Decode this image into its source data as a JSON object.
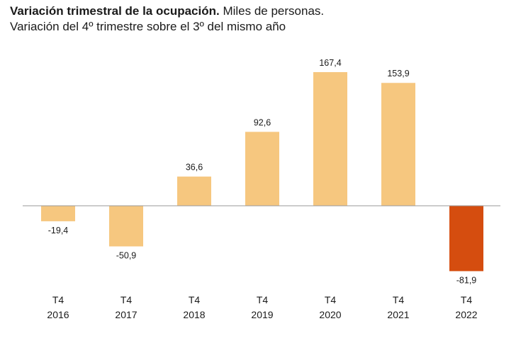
{
  "header": {
    "title_bold": "Variación trimestral de la ocupación.",
    "title_rest": "Miles de personas.",
    "subtitle": "Variación del 4º trimestre sobre el 3º del mismo año"
  },
  "chart_data": {
    "type": "bar",
    "categories": [
      [
        "T4",
        "2016"
      ],
      [
        "T4",
        "2017"
      ],
      [
        "T4",
        "2018"
      ],
      [
        "T4",
        "2019"
      ],
      [
        "T4",
        "2020"
      ],
      [
        "T4",
        "2021"
      ],
      [
        "T4",
        "2022"
      ]
    ],
    "values": [
      -19.4,
      -50.9,
      36.6,
      92.6,
      167.4,
      153.9,
      -81.9
    ],
    "value_labels": [
      "-19,4",
      "-50,9",
      "36,6",
      "92,6",
      "167,4",
      "153,9",
      "-81,9"
    ],
    "colors": [
      "#f6c77f",
      "#f6c77f",
      "#f6c77f",
      "#f6c77f",
      "#f6c77f",
      "#f6c77f",
      "#d54d0f"
    ],
    "axis_color": "#9a9a9a",
    "grid": false,
    "legend": "none"
  }
}
